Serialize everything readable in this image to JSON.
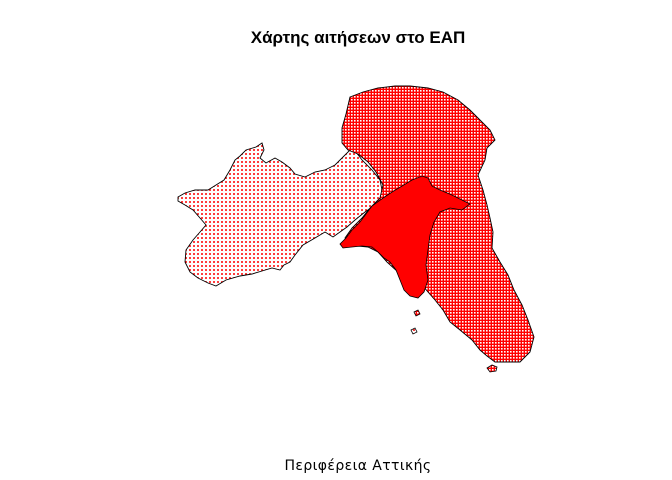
{
  "title": "Χάρτης αιτήσεων στο ΕΑΠ",
  "subtitle": "Περιφέρεια Αττικής",
  "fill_color": "#ff0000",
  "outline_color": "#000000",
  "regions": [
    {
      "id": "west-attica",
      "pattern": "dots"
    },
    {
      "id": "east-attica",
      "pattern": "grid"
    },
    {
      "id": "athens-piraeus",
      "pattern": "solid"
    }
  ]
}
